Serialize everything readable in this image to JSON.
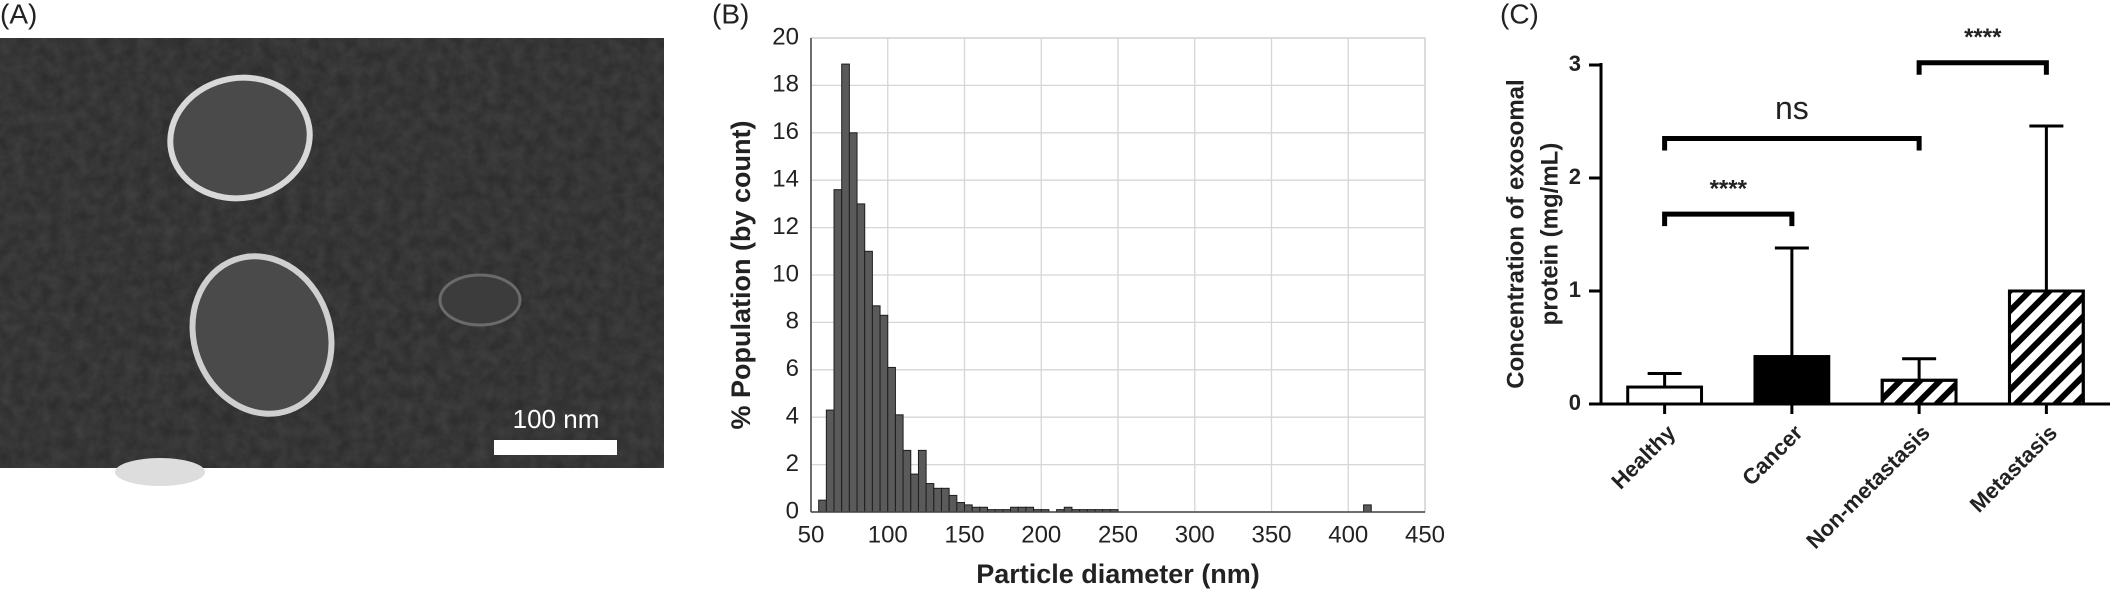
{
  "chart_data": [
    {
      "type": "image",
      "panel_label": "(A)",
      "scale_bar_label": "100 nm"
    },
    {
      "type": "histogram",
      "panel_label": "(B)",
      "xlabel": "Particle diameter (nm)",
      "ylabel": "% Population (by count)",
      "bins": [
        55,
        60,
        65,
        70,
        75,
        80,
        85,
        90,
        95,
        100,
        105,
        110,
        115,
        120,
        125,
        130,
        135,
        140,
        145,
        150,
        155,
        160,
        165,
        170,
        175,
        180,
        185,
        190,
        195,
        200,
        205,
        210,
        215,
        220,
        225,
        230,
        235,
        240,
        245,
        250,
        255,
        260,
        265,
        270,
        275,
        280,
        285,
        290,
        295,
        300,
        305,
        310,
        315,
        320,
        325,
        330,
        335,
        340,
        345,
        350,
        355,
        360,
        365,
        370,
        375,
        380,
        385,
        390,
        395,
        400,
        405,
        410,
        415
      ],
      "counts": [
        0.5,
        4.3,
        13.6,
        18.9,
        16.0,
        13.0,
        11.0,
        8.7,
        8.3,
        6.1,
        4.1,
        2.6,
        1.6,
        2.6,
        1.2,
        1.0,
        1.0,
        0.7,
        0.4,
        0.3,
        0.2,
        0.2,
        0.1,
        0.1,
        0.1,
        0.2,
        0.2,
        0.2,
        0.1,
        0.1,
        0,
        0.1,
        0.2,
        0.1,
        0.1,
        0.1,
        0.1,
        0.1,
        0.1,
        0,
        0,
        0,
        0,
        0,
        0,
        0,
        0,
        0,
        0,
        0,
        0,
        0,
        0,
        0,
        0,
        0,
        0,
        0,
        0,
        0,
        0,
        0,
        0,
        0,
        0,
        0,
        0,
        0,
        0,
        0,
        0,
        0.3
      ],
      "color": "#5a5a5a",
      "xlim": [
        50,
        450
      ],
      "xticks": [
        50,
        100,
        150,
        200,
        250,
        300,
        350,
        400,
        450
      ],
      "ylim": [
        0,
        20
      ],
      "yticks": [
        0,
        2,
        4,
        6,
        8,
        10,
        12,
        14,
        16,
        18,
        20
      ],
      "grid": true
    },
    {
      "type": "bar",
      "panel_label": "(C)",
      "ylabel": [
        "Concentration of exosomal",
        "protein (mg/mL)"
      ],
      "categories": [
        "Healthy",
        "Cancer",
        "Non-metastasis",
        "Metastasis"
      ],
      "values": [
        0.15,
        0.42,
        0.21,
        1.0
      ],
      "errors": [
        0.12,
        0.96,
        0.19,
        1.46
      ],
      "colors": [
        "#ffffff",
        "#000000",
        "#ffffff",
        "#ffffff"
      ],
      "hatch": [
        false,
        false,
        true,
        true
      ],
      "ylim": [
        0,
        3
      ],
      "yticks": [
        0,
        1,
        2,
        3
      ],
      "annotations": [
        {
          "from": 0,
          "to": 1,
          "label": "****"
        },
        {
          "from": 0,
          "to": 2,
          "label": "ns"
        },
        {
          "from": 2,
          "to": 3,
          "label": "****"
        }
      ]
    }
  ]
}
